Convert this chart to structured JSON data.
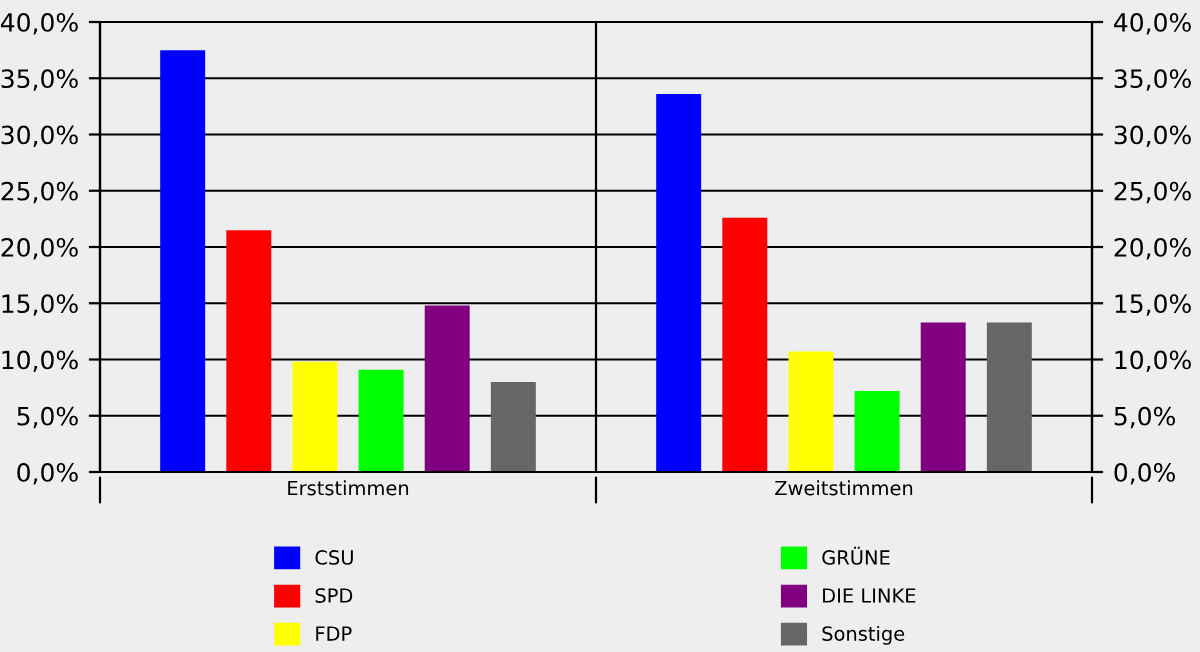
{
  "chart_data": {
    "type": "bar",
    "categories": [
      "Erststimmen",
      "Zweitstimmen"
    ],
    "series": [
      {
        "name": "CSU",
        "color": "#0000ff",
        "values": [
          37.5,
          33.6
        ]
      },
      {
        "name": "SPD",
        "color": "#ff0000",
        "values": [
          21.5,
          22.6
        ]
      },
      {
        "name": "FDP",
        "color": "#ffff00",
        "values": [
          9.8,
          10.7
        ]
      },
      {
        "name": "GRÜNE",
        "color": "#00ff00",
        "values": [
          9.1,
          7.2
        ]
      },
      {
        "name": "DIE LINKE",
        "color": "#800080",
        "values": [
          14.8,
          13.3
        ]
      },
      {
        "name": "Sonstige",
        "color": "#666666",
        "values": [
          8.0,
          13.3
        ]
      }
    ],
    "ylim": [
      0,
      40
    ],
    "yticks": [
      {
        "value": 0,
        "label": "0,0%"
      },
      {
        "value": 5,
        "label": "5,0%"
      },
      {
        "value": 10,
        "label": "10,0%"
      },
      {
        "value": 15,
        "label": "15,0%"
      },
      {
        "value": 20,
        "label": "20,0%"
      },
      {
        "value": 25,
        "label": "25,0%"
      },
      {
        "value": 30,
        "label": "30,0%"
      },
      {
        "value": 35,
        "label": "35,0%"
      },
      {
        "value": 40,
        "label": "40,0%"
      }
    ],
    "y2lim": [
      0,
      40
    ],
    "y2ticks": [
      {
        "value": 0,
        "label": "0,0%"
      },
      {
        "value": 5,
        "label": "5,0%"
      },
      {
        "value": 10,
        "label": "10,0%"
      },
      {
        "value": 15,
        "label": "15,0%"
      },
      {
        "value": 20,
        "label": "20,0%"
      },
      {
        "value": 25,
        "label": "25,0%"
      },
      {
        "value": 30,
        "label": "30,0%"
      },
      {
        "value": 35,
        "label": "35,0%"
      },
      {
        "value": 40,
        "label": "40,0%"
      }
    ],
    "grid": "y",
    "legend": "bottom"
  }
}
